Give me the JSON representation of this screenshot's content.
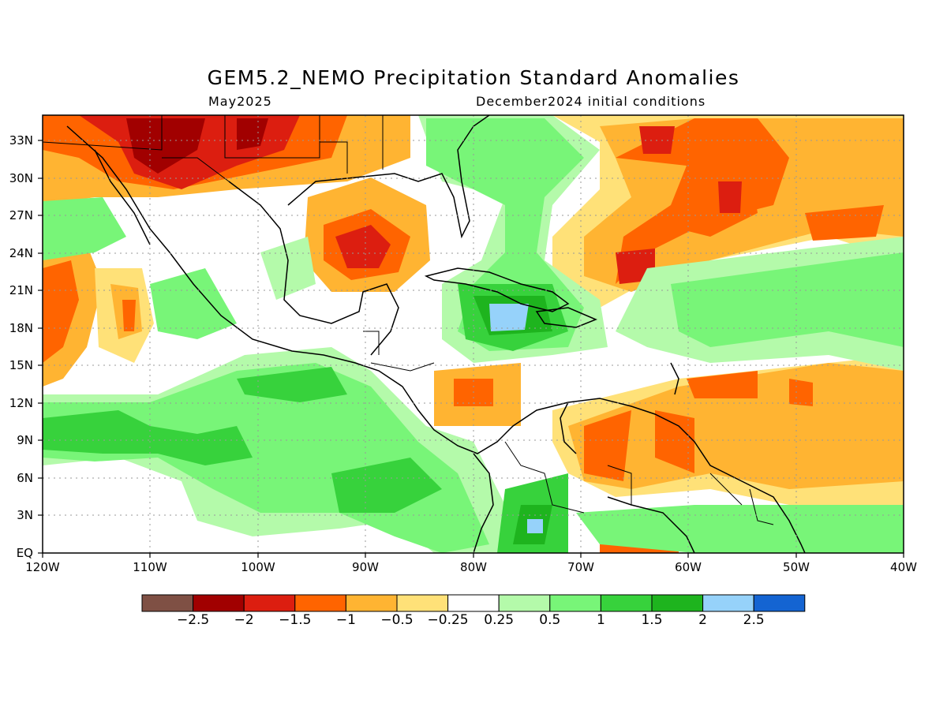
{
  "title": "GEM5.2_NEMO Precipitation Standard Anomalies",
  "subtitle_left": "May2025",
  "subtitle_right": "December2024 initial conditions",
  "map": {
    "lon_range": [
      -120,
      -40
    ],
    "lat_range": [
      0,
      35
    ],
    "lat_ticks": [
      "33N",
      "30N",
      "27N",
      "24N",
      "21N",
      "18N",
      "15N",
      "12N",
      "9N",
      "6N",
      "3N",
      "EQ"
    ],
    "lon_ticks": [
      "120W",
      "110W",
      "100W",
      "90W",
      "80W",
      "70W",
      "60W",
      "50W",
      "40W"
    ]
  },
  "colorbar": {
    "colors": [
      "#7f5044",
      "#a10000",
      "#dc1e10",
      "#ff6400",
      "#ffb432",
      "#ffe178",
      "#ffffff",
      "#b4faaa",
      "#78f578",
      "#37d23c",
      "#1eb41e",
      "#96d2fa",
      "#1464d2"
    ],
    "labels": [
      "−2.5",
      "−2",
      "−1.5",
      "−1",
      "−0.5",
      "−0.25",
      "0.25",
      "0.5",
      "1",
      "1.5",
      "2",
      "2.5"
    ]
  }
}
